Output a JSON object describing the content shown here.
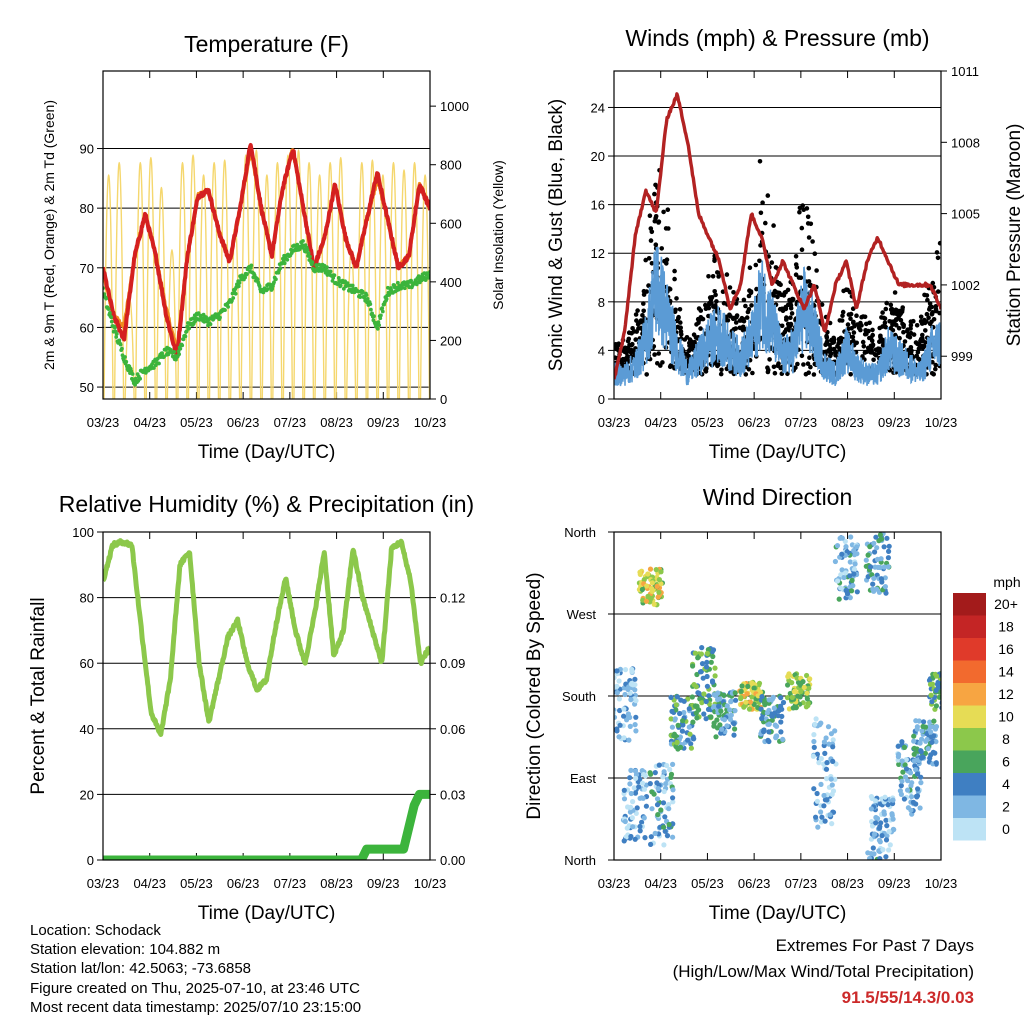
{
  "chart_data": [
    {
      "type": "line",
      "title": "Temperature (F)",
      "xlabel": "Time (Day/UTC)",
      "ylabel": "2m & 9m T (Red, Orange) & 2m Td (Green)",
      "ylabel_right": "Solar Insolation (Yellow)",
      "x_ticks": [
        "03/23",
        "04/23",
        "05/23",
        "06/23",
        "07/23",
        "08/23",
        "09/23",
        "10/23"
      ],
      "ylim": [
        48,
        103
      ],
      "y_ticks": [
        50,
        60,
        70,
        80,
        90
      ],
      "ylim_right": [
        0,
        1120
      ],
      "y_ticks_right": [
        0,
        200,
        400,
        600,
        800,
        1000
      ],
      "grid": "horizontal",
      "series": [
        {
          "name": "2m T",
          "color": "#d42020",
          "style": "line",
          "values": [
            70,
            62,
            58,
            72,
            79,
            72,
            62,
            55,
            72,
            82,
            83,
            76,
            71,
            80,
            91,
            80,
            72,
            83,
            90,
            80,
            70,
            75,
            84,
            75,
            70,
            78,
            86,
            78,
            70,
            72,
            84,
            80
          ]
        },
        {
          "name": "9m T",
          "color": "#f08c1e",
          "style": "line",
          "values": [
            69,
            62,
            60,
            72,
            79,
            72,
            63,
            56,
            72,
            82,
            83,
            76,
            71,
            80,
            90,
            80,
            72,
            83,
            90,
            80,
            70,
            75,
            84,
            75,
            70,
            78,
            85,
            78,
            70,
            72,
            84,
            80
          ]
        },
        {
          "name": "2m Td",
          "color": "#3cb43c",
          "style": "dots",
          "values": [
            66,
            60,
            55,
            51,
            53,
            54,
            56,
            55,
            60,
            62,
            61,
            62,
            64,
            68,
            70,
            66,
            67,
            71,
            73,
            74,
            70,
            70,
            68,
            67,
            66,
            65,
            60,
            66,
            67,
            67,
            68,
            69
          ]
        },
        {
          "name": "Solar Insolation",
          "color": "#f5d76e",
          "style": "spikes",
          "axis": "right",
          "daily_peaks": [
            900,
            950,
            400,
            950,
            970,
            850,
            600,
            950,
            980,
            900,
            950,
            960,
            700,
            980,
            1000,
            900,
            950,
            980,
            1000,
            950,
            900,
            950,
            970,
            600,
            950,
            960,
            900,
            950,
            920,
            950,
            900
          ]
        }
      ]
    },
    {
      "type": "scatter",
      "title": "Winds (mph) & Pressure (mb)",
      "xlabel": "Time (Day/UTC)",
      "ylabel": "Sonic Wind & Gust (Blue, Black)",
      "ylabel_right": "Station Pressure (Maroon)",
      "x_ticks": [
        "03/23",
        "04/23",
        "05/23",
        "06/23",
        "07/23",
        "08/23",
        "09/23",
        "10/23"
      ],
      "ylim": [
        0,
        27
      ],
      "y_ticks": [
        0,
        4,
        8,
        12,
        16,
        20,
        24
      ],
      "ylim_right": [
        997.2,
        1011
      ],
      "y_ticks_right": [
        999,
        1002,
        1005,
        1008,
        1011
      ],
      "grid": "horizontal",
      "series": [
        {
          "name": "Gust",
          "color": "#000000",
          "style": "dots",
          "envelope": [
            6,
            5,
            7,
            12,
            24,
            17,
            10,
            6,
            8,
            12,
            14,
            10,
            8,
            12,
            22,
            16,
            9,
            12,
            19,
            14,
            8,
            6,
            11,
            8,
            7,
            6,
            11,
            9,
            8,
            7,
            12,
            15
          ]
        },
        {
          "name": "Sonic Wind",
          "color": "#5b9bd5",
          "style": "dense",
          "envelope": [
            3,
            3,
            4,
            7,
            14,
            10,
            6,
            3,
            5,
            7,
            8,
            6,
            5,
            7,
            12,
            9,
            5,
            6,
            11,
            8,
            4,
            3,
            6,
            4,
            3,
            3,
            6,
            5,
            4,
            3,
            6,
            7
          ]
        },
        {
          "name": "Station Pressure",
          "color": "#b22222",
          "style": "line",
          "axis": "right",
          "values": [
            998,
            1000,
            1004,
            1006,
            1005,
            1009,
            1010,
            1008,
            1005,
            1004,
            1003,
            1001,
            1002,
            1005,
            1004,
            1002,
            1003,
            1002,
            1001,
            1002,
            1000,
            1002,
            1003,
            1001,
            1003,
            1004,
            1003,
            1002,
            1002,
            1002,
            1002,
            1001
          ]
        }
      ]
    },
    {
      "type": "line",
      "title": "Relative Humidity (%) & Precipitation (in)",
      "xlabel": "Time (Day/UTC)",
      "ylabel": "Percent & Total Rainfall",
      "x_ticks": [
        "03/23",
        "04/23",
        "05/23",
        "06/23",
        "07/23",
        "08/23",
        "09/23",
        "10/23"
      ],
      "ylim": [
        0,
        100
      ],
      "y_ticks": [
        0,
        20,
        40,
        60,
        80,
        100
      ],
      "ylim_right": [
        0,
        0.15
      ],
      "y_ticks_right": [
        "0.00",
        "0.03",
        "0.06",
        "0.09",
        "0.12"
      ],
      "grid": "horizontal",
      "series": [
        {
          "name": "Relative Humidity",
          "color": "#8cc84b",
          "style": "line",
          "values": [
            85,
            96,
            97,
            96,
            70,
            45,
            38,
            55,
            90,
            94,
            60,
            42,
            55,
            68,
            73,
            60,
            52,
            55,
            72,
            86,
            70,
            60,
            75,
            94,
            62,
            70,
            95,
            80,
            70,
            60,
            95,
            97,
            85,
            60,
            65
          ]
        },
        {
          "name": "Total Rainfall",
          "color": "#3cb43c",
          "style": "line",
          "axis": "right",
          "points": [
            [
              0,
              0
            ],
            [
              24.5,
              0
            ],
            [
              25,
              0.005
            ],
            [
              28.5,
              0.005
            ],
            [
              29,
              0.015
            ],
            [
              29.5,
              0.025
            ],
            [
              30,
              0.03
            ],
            [
              32,
              0.03
            ]
          ]
        }
      ]
    },
    {
      "type": "scatter",
      "title": "Wind Direction",
      "xlabel": "Time (Day/UTC)",
      "ylabel": "Direction (Colored By Speed)",
      "x_ticks": [
        "03/23",
        "04/23",
        "05/23",
        "06/23",
        "07/23",
        "08/23",
        "09/23",
        "10/23"
      ],
      "y_ticks": [
        "North",
        "East",
        "South",
        "West",
        "North"
      ],
      "ylim": [
        0,
        360
      ],
      "grid": "horizontal",
      "legend": {
        "title": "mph",
        "placement": "right",
        "labels": [
          "20+",
          "18",
          "16",
          "14",
          "12",
          "10",
          "8",
          "6",
          "4",
          "2",
          "0"
        ],
        "colors": [
          "#a31b1b",
          "#c42525",
          "#e03a2a",
          "#f26a2e",
          "#f7a542",
          "#e6dc55",
          "#8cc84b",
          "#49a55c",
          "#3f7fc2",
          "#7fb7e3",
          "#bde3f5"
        ]
      },
      "clusters": [
        {
          "day": 1,
          "dir_center": 170,
          "dir_spread": 40,
          "speed": 2
        },
        {
          "day": 2,
          "dir_center": 60,
          "dir_spread": 40,
          "speed": 2
        },
        {
          "day": 3.5,
          "dir_center": 300,
          "dir_spread": 20,
          "speed": 9
        },
        {
          "day": 4.5,
          "dir_center": 60,
          "dir_spread": 45,
          "speed": 3
        },
        {
          "day": 6.5,
          "dir_center": 150,
          "dir_spread": 30,
          "speed": 5
        },
        {
          "day": 8.5,
          "dir_center": 195,
          "dir_spread": 40,
          "speed": 6
        },
        {
          "day": 10.5,
          "dir_center": 160,
          "dir_spread": 25,
          "speed": 4
        },
        {
          "day": 13,
          "dir_center": 180,
          "dir_spread": 15,
          "speed": 9
        },
        {
          "day": 15,
          "dir_center": 155,
          "dir_spread": 25,
          "speed": 4
        },
        {
          "day": 17.5,
          "dir_center": 185,
          "dir_spread": 20,
          "speed": 8
        },
        {
          "day": 20,
          "dir_center": 95,
          "dir_spread": 60,
          "speed": 2
        },
        {
          "day": 22,
          "dir_center": 320,
          "dir_spread": 35,
          "speed": 3
        },
        {
          "day": 25,
          "dir_center": 330,
          "dir_spread": 40,
          "speed": 4
        },
        {
          "day": 25.5,
          "dir_center": 40,
          "dir_spread": 30,
          "speed": 2
        },
        {
          "day": 28,
          "dir_center": 90,
          "dir_spread": 40,
          "speed": 3
        },
        {
          "day": 29.5,
          "dir_center": 130,
          "dir_spread": 25,
          "speed": 4
        },
        {
          "day": 31,
          "dir_center": 185,
          "dir_spread": 20,
          "speed": 6
        }
      ]
    }
  ],
  "info": {
    "location": "Location: Schodack",
    "elevation": "Station elevation: 104.882 m",
    "latlon": "Station lat/lon: 42.5063; -73.6858",
    "created": "Figure created on Thu, 2025-07-10, at 23:46 UTC",
    "timestamp": "Most recent data timestamp: 2025/07/10 23:15:00"
  },
  "extremes": {
    "line1": "Extremes For Past 7 Days",
    "line2": "(High/Low/Max Wind/Total Precipitation)",
    "values": "91.5/55/14.3/0.03"
  }
}
